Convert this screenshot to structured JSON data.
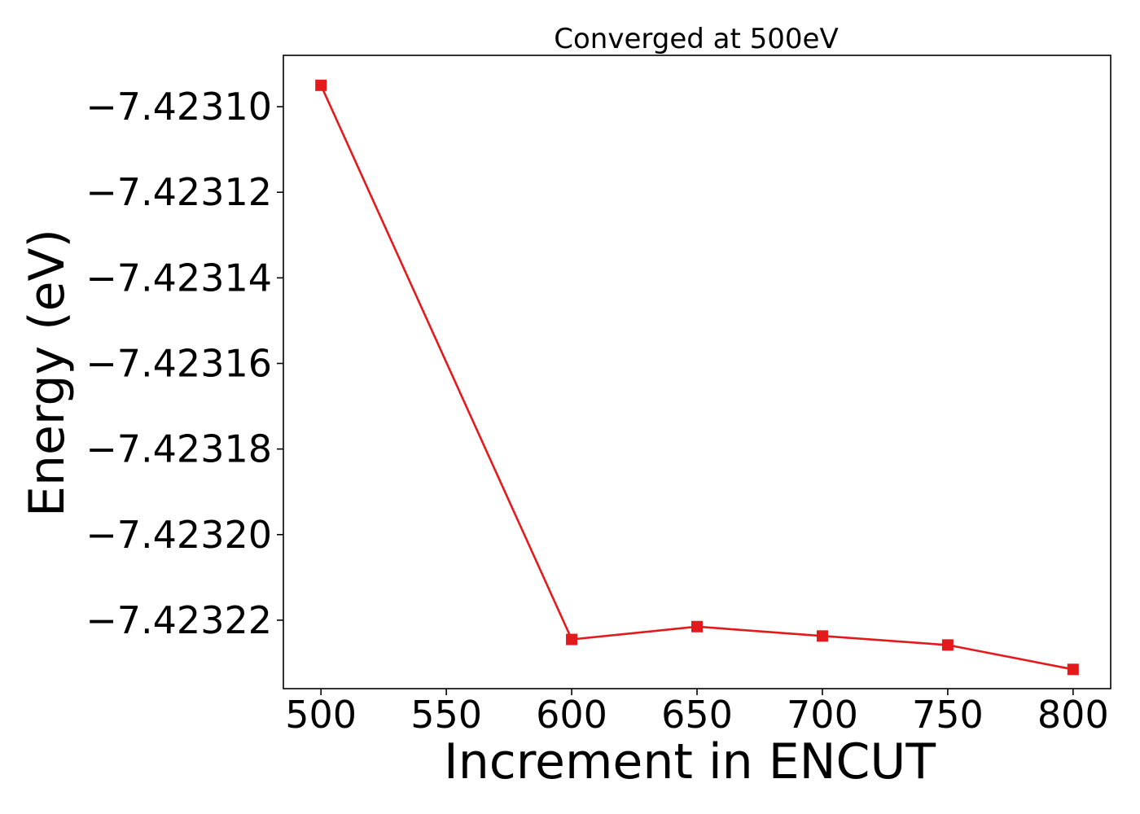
{
  "chart_data": {
    "type": "line",
    "title": "Converged at 500eV",
    "xlabel": "Increment in ENCUT",
    "ylabel": "Energy (eV)",
    "xlim": [
      485,
      815
    ],
    "ylim": [
      -7.423236,
      -7.423088
    ],
    "xticks": [
      500,
      550,
      600,
      650,
      700,
      750,
      800
    ],
    "xtick_labels": [
      "500",
      "550",
      "600",
      "650",
      "700",
      "750",
      "800"
    ],
    "yticks": [
      -7.4231,
      -7.42312,
      -7.42314,
      -7.42316,
      -7.42318,
      -7.4232,
      -7.42322
    ],
    "ytick_labels": [
      "−7.42310",
      "−7.42312",
      "−7.42314",
      "−7.42316",
      "−7.42318",
      "−7.42320",
      "−7.42322"
    ],
    "grid": false,
    "series": [
      {
        "color": "#e31a1c",
        "marker": "square",
        "x": [
          500,
          600,
          650,
          700,
          750,
          800
        ],
        "y": [
          -7.423095,
          -7.4232245,
          -7.4232215,
          -7.4232237,
          -7.4232258,
          -7.4232315
        ]
      }
    ]
  }
}
